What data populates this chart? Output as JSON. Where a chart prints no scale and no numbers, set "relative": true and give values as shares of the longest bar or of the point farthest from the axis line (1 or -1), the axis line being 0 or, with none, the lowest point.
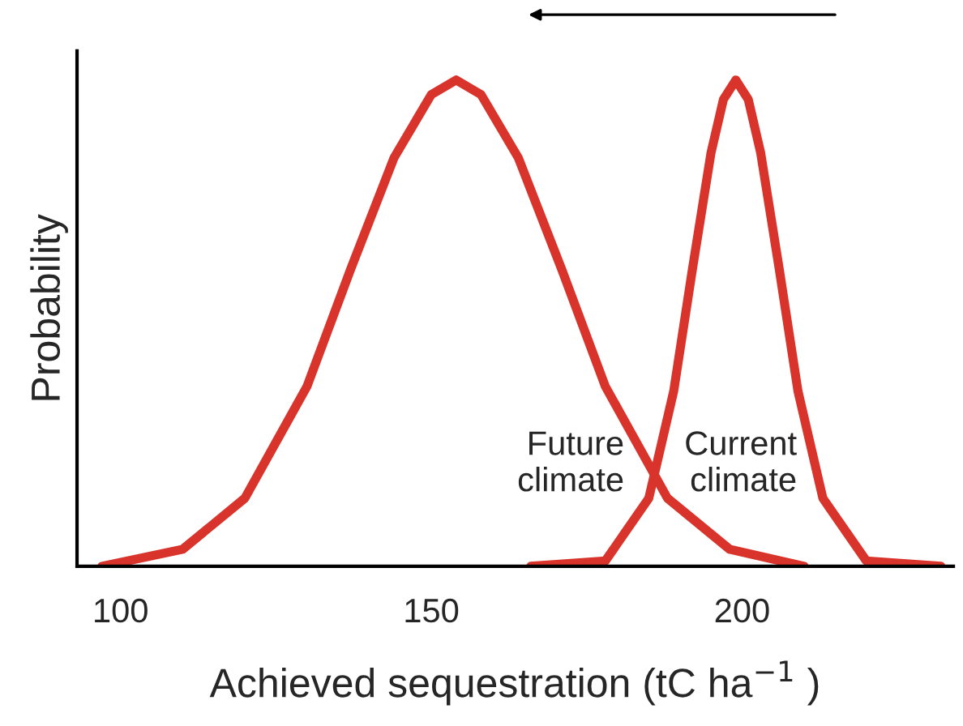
{
  "chart_data": {
    "type": "line",
    "relative": true,
    "ylabel": "Probability",
    "xlabel": "Achieved sequestration (tC ha$^{−1}$ )",
    "xlim": [
      93,
      234
    ],
    "xticks": [
      100,
      150,
      200
    ],
    "grid": false,
    "legend": false,
    "marker": "none",
    "line_style": "solid",
    "series": [
      {
        "name": "Future\nclimate",
        "color": "#d9342b",
        "x": [
          97,
          110,
          120,
          130,
          137,
          144,
          150,
          154,
          158,
          164,
          171,
          178,
          188,
          198,
          210
        ],
        "values": [
          0,
          0.035,
          0.14,
          0.37,
          0.61,
          0.84,
          0.97,
          1,
          0.97,
          0.84,
          0.61,
          0.37,
          0.14,
          0.035,
          0
        ]
      },
      {
        "name": "Current\nclimate",
        "color": "#d9342b",
        "x": [
          166,
          178,
          185,
          189,
          192,
          195,
          197,
          199,
          201,
          203,
          206,
          209,
          213,
          220,
          232
        ],
        "values": [
          0,
          0.011,
          0.14,
          0.36,
          0.61,
          0.85,
          0.96,
          1,
          0.96,
          0.85,
          0.61,
          0.36,
          0.14,
          0.011,
          0
        ]
      }
    ]
  }
}
